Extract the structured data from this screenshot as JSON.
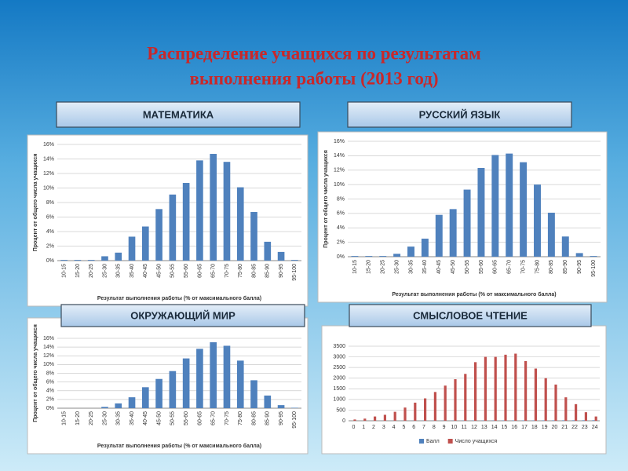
{
  "title": [
    "Распределение учащихся по результатам",
    "выполнения работы (2013 год)"
  ],
  "chart_data": [
    {
      "type": "bar",
      "title": "МАТЕМАТИКА",
      "categories": [
        "10-15",
        "15-20",
        "20-25",
        "25-30",
        "30-35",
        "35-40",
        "40-45",
        "45-50",
        "50-55",
        "55-60",
        "60-65",
        "65-70",
        "70-75",
        "75-80",
        "80-85",
        "85-90",
        "90-95",
        "95-100"
      ],
      "values": [
        0.1,
        0.1,
        0.1,
        0.6,
        1.1,
        3.3,
        4.7,
        7.1,
        9.1,
        10.7,
        13.8,
        14.7,
        13.6,
        10.1,
        6.7,
        2.6,
        1.2,
        0.1
      ],
      "color": "#4f81bd",
      "x_label": "Результат выполнения работы (% от максимального балла)",
      "y_label": "Процент от общего  числа учащихся",
      "ylim": [
        0,
        16
      ],
      "yticks": [
        {
          "value": 0,
          "label": "0%"
        },
        {
          "value": 2,
          "label": "2%"
        },
        {
          "value": 4,
          "label": "4%"
        },
        {
          "value": 6,
          "label": "6%"
        },
        {
          "value": 8,
          "label": "8%"
        },
        {
          "value": 10,
          "label": "10%"
        },
        {
          "value": 12,
          "label": "12%"
        },
        {
          "value": 14,
          "label": "14%"
        },
        {
          "value": 16,
          "label": "16%"
        }
      ],
      "grid": true
    },
    {
      "type": "bar",
      "title": "РУССКИЙ ЯЗЫК",
      "categories": [
        "10-15",
        "15-20",
        "20-25",
        "25-30",
        "30-35",
        "35-40",
        "40-45",
        "45-50",
        "50-55",
        "55-60",
        "60-65",
        "65-70",
        "70-75",
        "75-80",
        "80-85",
        "85-90",
        "90-95",
        "95-100"
      ],
      "values": [
        0.1,
        0.1,
        0.1,
        0.4,
        1.4,
        2.5,
        5.8,
        6.6,
        9.3,
        12.3,
        14.1,
        14.3,
        13.1,
        10.0,
        6.1,
        2.8,
        0.5,
        0.1
      ],
      "color": "#4f81bd",
      "x_label": "Результат выполнения работы (% от максимального балла)",
      "y_label": "Процент от общего числа учащихся",
      "ylim": [
        0,
        16
      ],
      "yticks": [
        {
          "value": 0,
          "label": "0%"
        },
        {
          "value": 2,
          "label": "2%"
        },
        {
          "value": 4,
          "label": "4%"
        },
        {
          "value": 6,
          "label": "6%"
        },
        {
          "value": 8,
          "label": "8%"
        },
        {
          "value": 10,
          "label": "10%"
        },
        {
          "value": 12,
          "label": "12%"
        },
        {
          "value": 14,
          "label": "14%"
        },
        {
          "value": 16,
          "label": "16%"
        }
      ],
      "grid": true
    },
    {
      "type": "bar",
      "title": "ОКРУЖАЮЩИЙ МИР",
      "categories": [
        "10-15",
        "15-20",
        "20-25",
        "25-30",
        "30-35",
        "35-40",
        "40-45",
        "45-50",
        "50-55",
        "55-60",
        "60-65",
        "65-70",
        "70-75",
        "75-80",
        "80-85",
        "85-90",
        "90-95",
        "95-100"
      ],
      "values": [
        0,
        0,
        0,
        0.3,
        1.1,
        2.5,
        4.8,
        6.7,
        8.5,
        11.4,
        13.6,
        15.1,
        14.3,
        10.9,
        6.4,
        2.9,
        0.7,
        0.1
      ],
      "color": "#4f81bd",
      "x_label": "Результат выполнения работы (% от максимального балла)",
      "y_label": "Процент от общего  числа учащихся",
      "ylim": [
        0,
        16
      ],
      "yticks": [
        {
          "value": 0,
          "label": "0%"
        },
        {
          "value": 2,
          "label": "2%"
        },
        {
          "value": 4,
          "label": "4%"
        },
        {
          "value": 6,
          "label": "6%"
        },
        {
          "value": 8,
          "label": "8%"
        },
        {
          "value": 10,
          "label": "10%"
        },
        {
          "value": 12,
          "label": "12%"
        },
        {
          "value": 14,
          "label": "14%"
        },
        {
          "value": 16,
          "label": "16%"
        }
      ],
      "grid": true
    },
    {
      "type": "bar",
      "title": "СМЫСЛОВОЕ ЧТЕНИЕ",
      "categories": [
        "0",
        "1",
        "2",
        "3",
        "4",
        "5",
        "6",
        "7",
        "8",
        "9",
        "10",
        "11",
        "12",
        "13",
        "14",
        "15",
        "16",
        "17",
        "18",
        "19",
        "20",
        "21",
        "22",
        "23",
        "24"
      ],
      "series": [
        {
          "name": "Балл",
          "color": "#4f81bd",
          "values": [
            0,
            1,
            2,
            3,
            4,
            5,
            6,
            7,
            8,
            9,
            10,
            11,
            12,
            13,
            14,
            15,
            16,
            17,
            18,
            19,
            20,
            21,
            22,
            23,
            24
          ]
        },
        {
          "name": "Число учащихся",
          "color": "#c0504d",
          "values": [
            60,
            100,
            200,
            280,
            420,
            620,
            850,
            1050,
            1350,
            1650,
            1950,
            2200,
            2750,
            3000,
            3000,
            3100,
            3150,
            2800,
            2450,
            2000,
            1700,
            1100,
            780,
            400,
            200
          ]
        }
      ],
      "ylim": [
        0,
        3500
      ],
      "yticks": [
        0,
        500,
        1000,
        1500,
        2000,
        2500,
        3000,
        3500
      ],
      "grid": true,
      "legend": "bottom"
    }
  ]
}
